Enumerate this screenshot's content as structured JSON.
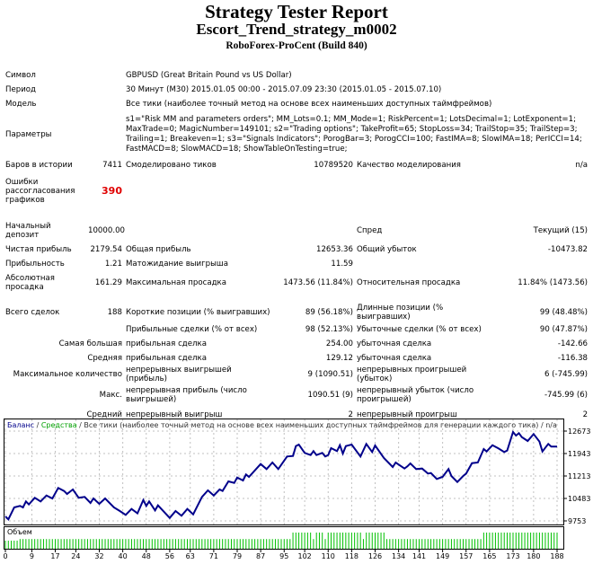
{
  "header": {
    "title": "Strategy Tester Report",
    "strategy": "Escort_Trend_strategy_m0002",
    "server": "RoboForex-ProCent (Build 840)"
  },
  "info": {
    "symbol_label": "Символ",
    "symbol": "GBPUSD (Great Britain Pound vs US Dollar)",
    "period_label": "Период",
    "period": "30 Минут (M30) 2015.01.05 00:00 - 2015.07.09 23:30 (2015.01.05 - 2015.07.10)",
    "model_label": "Модель",
    "model": "Все тики (наиболее точный метод на основе всех наименьших доступных таймфреймов)",
    "params_label": "Параметры",
    "params": "s1=\"Risk MM and parameters orders\"; MM_Lots=0.1; MM_Mode=1; RiskPercent=1; LotsDecimal=1; LotExponent=1; MaxTrade=0; MagicNumber=149101; s2=\"Trading options\"; TakeProfit=65; StopLoss=34; TrailStop=35; TrailStep=3; Trailing=1; Breakeven=1; s3=\"Signals Indicators\"; PorogBar=3; PorogCCI=100; FastIMA=8; SlowIMA=18; PerICCI=14; FastMACD=8; SlowMACD=18; ShowTableOnTesting=true;"
  },
  "stats": {
    "bars_label": "Баров в истории",
    "bars": "7411",
    "ticks_label": "Смоделировано тиков",
    "ticks": "10789520",
    "quality_label": "Качество моделирования",
    "quality": "n/a",
    "errors_label": "Ошибки рассогласования графиков",
    "errors": "390",
    "deposit_label": "Начальный депозит",
    "deposit": "10000.00",
    "spread_label": "Спред",
    "spread": "Текущий (15)",
    "net_label": "Чистая прибыль",
    "net": "2179.54",
    "gross_profit_label": "Общая прибыль",
    "gross_profit": "12653.36",
    "gross_loss_label": "Общий убыток",
    "gross_loss": "-10473.82",
    "pf_label": "Прибыльность",
    "pf": "1.21",
    "expected_label": "Матожидание выигрыша",
    "expected": "11.59",
    "abs_dd_label": "Абсолютная просадка",
    "abs_dd": "161.29",
    "max_dd_label": "Максимальная просадка",
    "max_dd": "1473.56 (11.84%)",
    "rel_dd_label": "Относительная просадка",
    "rel_dd": "11.84% (1473.56)",
    "total_label": "Всего сделок",
    "total": "188",
    "short_label": "Короткие позиции (% выигравших)",
    "short": "89 (56.18%)",
    "long_label": "Длинные позиции (% выигравших)",
    "long": "99 (48.48%)",
    "profit_trades_label": "Прибыльные сделки (% от всех)",
    "profit_trades": "98 (52.13%)",
    "loss_trades_label": "Убыточные сделки (% от всех)",
    "loss_trades": "90 (47.87%)",
    "largest_label": "Самая большая",
    "largest_profit_label": "прибыльная сделка",
    "largest_profit": "254.00",
    "largest_loss_label": "убыточная сделка",
    "largest_loss": "-142.66",
    "average_label": "Средняя",
    "average_profit_label": "прибыльная сделка",
    "average_profit": "129.12",
    "average_loss_label": "убыточная сделка",
    "average_loss": "-116.38",
    "maxcount_label": "Максимальное количество",
    "cons_wins_label": "непрерывных выигрышей (прибыль)",
    "cons_wins": "9 (1090.51)",
    "cons_losses_label": "непрерывных проигрышей (убыток)",
    "cons_losses": "6 (-745.99)",
    "max_label": "Макс.",
    "max_profit_label": "непрерывная прибыль (число выигрышей)",
    "max_profit": "1090.51 (9)",
    "max_loss_label": "непрерывный убыток (число проигрышей)",
    "max_loss": "-745.99 (6)",
    "avg_label": "Средний",
    "avg_wins_label": "непрерывный выигрыш",
    "avg_wins": "2",
    "avg_losses_label": "непрерывный проигрыш",
    "avg_losses": "2"
  },
  "chart_data": {
    "type": "line",
    "legend": {
      "balance": "Баланс",
      "sep1": " / ",
      "equity": "Средства",
      "rest": " / Все тики (наиболее точный метод на основе всех наименьших доступных таймфреймов для генерации каждого тика) / n/a"
    },
    "colors": {
      "balance": "#00008b",
      "equity": "#00a000",
      "volume": "#00c000",
      "grid": "#c0c0c0"
    },
    "ylim": [
      9753,
      12673
    ],
    "yticks": [
      "12673",
      "11943",
      "11213",
      "10483",
      "9753"
    ],
    "xticks": [
      "0",
      "9",
      "17",
      "24",
      "32",
      "40",
      "48",
      "56",
      "63",
      "71",
      "79",
      "87",
      "95",
      "102",
      "110",
      "118",
      "126",
      "134",
      "141",
      "149",
      "157",
      "165",
      "173",
      "180",
      "188"
    ],
    "volume_label": "Объем",
    "grid": true,
    "balance": [
      [
        0,
        9899
      ],
      [
        1,
        9802
      ],
      [
        3,
        10191
      ],
      [
        5,
        10240
      ],
      [
        6,
        10191
      ],
      [
        7,
        10386
      ],
      [
        8,
        10288
      ],
      [
        10,
        10503
      ],
      [
        12,
        10386
      ],
      [
        14,
        10580
      ],
      [
        16,
        10483
      ],
      [
        18,
        10824
      ],
      [
        20,
        10726
      ],
      [
        21,
        10629
      ],
      [
        23,
        10775
      ],
      [
        25,
        10503
      ],
      [
        27,
        10532
      ],
      [
        29,
        10337
      ],
      [
        30,
        10483
      ],
      [
        32,
        10308
      ],
      [
        34,
        10483
      ],
      [
        37,
        10191
      ],
      [
        39,
        10074
      ],
      [
        41,
        9948
      ],
      [
        43,
        10142
      ],
      [
        45,
        9997
      ],
      [
        47,
        10434
      ],
      [
        48,
        10240
      ],
      [
        49,
        10386
      ],
      [
        51,
        10094
      ],
      [
        52,
        10259
      ],
      [
        56,
        9850
      ],
      [
        58,
        10074
      ],
      [
        60,
        9919
      ],
      [
        62,
        10142
      ],
      [
        64,
        9967
      ],
      [
        67,
        10532
      ],
      [
        69,
        10746
      ],
      [
        71,
        10580
      ],
      [
        73,
        10775
      ],
      [
        74,
        10726
      ],
      [
        76,
        11038
      ],
      [
        78,
        10989
      ],
      [
        79,
        11164
      ],
      [
        81,
        11067
      ],
      [
        82,
        11262
      ],
      [
        83,
        11184
      ],
      [
        87,
        11602
      ],
      [
        89,
        11437
      ],
      [
        91,
        11651
      ],
      [
        93,
        11437
      ],
      [
        96,
        11846
      ],
      [
        98,
        11865
      ],
      [
        99,
        12186
      ],
      [
        100,
        12235
      ],
      [
        102,
        11962
      ],
      [
        104,
        11894
      ],
      [
        105,
        12021
      ],
      [
        106,
        11894
      ],
      [
        108,
        11962
      ],
      [
        109,
        11846
      ],
      [
        110,
        11894
      ],
      [
        111,
        12118
      ],
      [
        113,
        12021
      ],
      [
        114,
        12216
      ],
      [
        115,
        11943
      ],
      [
        116,
        12186
      ],
      [
        118,
        12235
      ],
      [
        121,
        11846
      ],
      [
        123,
        12254
      ],
      [
        125,
        11992
      ],
      [
        126,
        12206
      ],
      [
        129,
        11797
      ],
      [
        132,
        11505
      ],
      [
        133,
        11651
      ],
      [
        136,
        11456
      ],
      [
        137,
        11525
      ],
      [
        138,
        11622
      ],
      [
        140,
        11437
      ],
      [
        142,
        11456
      ],
      [
        144,
        11291
      ],
      [
        145,
        11310
      ],
      [
        147,
        11116
      ],
      [
        149,
        11184
      ],
      [
        151,
        11437
      ],
      [
        152,
        11213
      ],
      [
        154,
        11018
      ],
      [
        156,
        11213
      ],
      [
        157,
        11291
      ],
      [
        159,
        11632
      ],
      [
        161,
        11651
      ],
      [
        163,
        12089
      ],
      [
        164,
        12011
      ],
      [
        166,
        12216
      ],
      [
        168,
        12109
      ],
      [
        170,
        11992
      ],
      [
        171,
        12040
      ],
      [
        173,
        12644
      ],
      [
        174,
        12527
      ],
      [
        175,
        12605
      ],
      [
        176,
        12478
      ],
      [
        178,
        12352
      ],
      [
        180,
        12576
      ],
      [
        182,
        12332
      ],
      [
        183,
        12011
      ],
      [
        185,
        12254
      ],
      [
        186,
        12167
      ],
      [
        188,
        12167
      ]
    ],
    "volume_levels": [
      {
        "from": 0,
        "to": 4,
        "level": 1
      },
      {
        "from": 5,
        "to": 97,
        "level": 1.2
      },
      {
        "from": 98,
        "to": 104,
        "level": 2
      },
      {
        "from": 105,
        "to": 105,
        "level": 1.2
      },
      {
        "from": 106,
        "to": 108,
        "level": 2
      },
      {
        "from": 109,
        "to": 109,
        "level": 1.2
      },
      {
        "from": 110,
        "to": 121,
        "level": 2
      },
      {
        "from": 122,
        "to": 122,
        "level": 1.2
      },
      {
        "from": 123,
        "to": 129,
        "level": 2
      },
      {
        "from": 130,
        "to": 162,
        "level": 1.2
      },
      {
        "from": 163,
        "to": 188,
        "level": 2
      }
    ]
  }
}
